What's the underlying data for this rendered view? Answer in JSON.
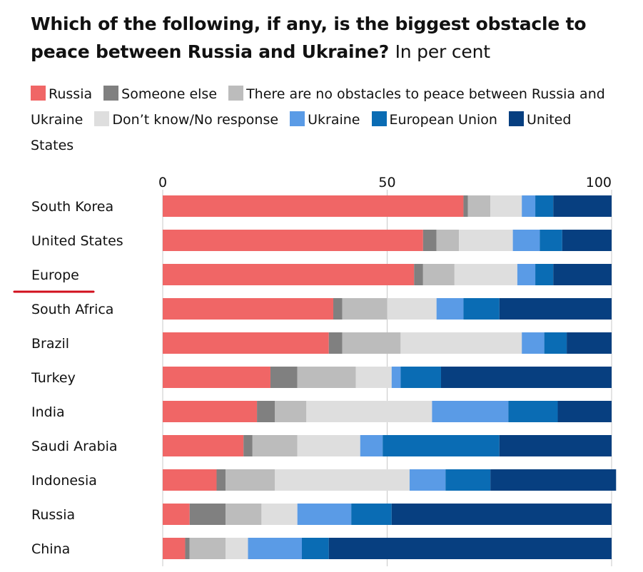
{
  "title": "Which of the following, if any, is the biggest obstacle to peace between Russia and Ukraine?",
  "subtitle": "In per cent",
  "chart_data": {
    "type": "bar",
    "orientation": "horizontal",
    "stacked": true,
    "title": "Which of the following, if any, is the biggest obstacle to peace between Russia and Ukraine?",
    "subtitle": "In per cent",
    "categories": [
      "South Korea",
      "United States",
      "Europe",
      "South Africa",
      "Brazil",
      "Turkey",
      "India",
      "Saudi Arabia",
      "Indonesia",
      "Russia",
      "China"
    ],
    "xlim": [
      0,
      100
    ],
    "xticks": [
      0,
      50,
      100
    ],
    "grid": true,
    "legend_position": "top",
    "highlighted_category": "Europe",
    "highlight_color": "#d10f1c",
    "series": [
      {
        "name": "Russia",
        "color": "#f06666",
        "values": [
          67,
          58,
          56,
          38,
          37,
          24,
          21,
          18,
          12,
          6,
          5
        ]
      },
      {
        "name": "Someone else",
        "color": "#808080",
        "values": [
          1,
          3,
          2,
          2,
          3,
          6,
          4,
          2,
          2,
          8,
          1
        ]
      },
      {
        "name": "There are no obstacles to peace between Russia and Ukraine",
        "color": "#bcbcbc",
        "values": [
          5,
          5,
          7,
          10,
          13,
          13,
          7,
          10,
          11,
          8,
          8
        ]
      },
      {
        "name": "Don’t know/No response",
        "color": "#dedede",
        "values": [
          7,
          12,
          14,
          11,
          27,
          8,
          28,
          14,
          30,
          8,
          5
        ]
      },
      {
        "name": "Ukraine",
        "color": "#5a9be6",
        "values": [
          3,
          6,
          4,
          6,
          5,
          2,
          17,
          5,
          8,
          12,
          12
        ]
      },
      {
        "name": "European Union",
        "color": "#0a6cb4",
        "values": [
          4,
          5,
          4,
          8,
          5,
          9,
          11,
          26,
          10,
          9,
          6
        ]
      },
      {
        "name": "United States",
        "color": "#073f80",
        "values": [
          13,
          11,
          13,
          25,
          10,
          38,
          12,
          25,
          28,
          49,
          63
        ]
      }
    ]
  }
}
